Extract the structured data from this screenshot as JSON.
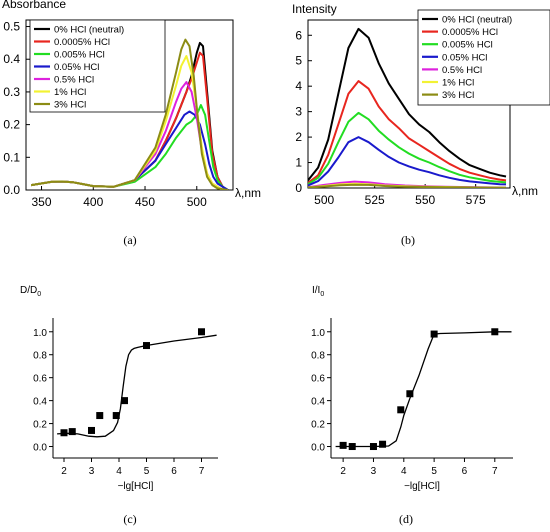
{
  "chart_data": [
    {
      "panel": "(a)",
      "type": "line",
      "title": "",
      "ylabel": "Absorbance",
      "xlabel": "λ,nm",
      "xlim": [
        335,
        535
      ],
      "ylim": [
        0,
        0.52
      ],
      "xticks": [
        350,
        400,
        450,
        500
      ],
      "yticks": [
        0.0,
        0.1,
        0.2,
        0.3,
        0.4,
        0.5
      ],
      "legend_position": "top-left",
      "series": [
        {
          "name": "0% HCl (neutral)",
          "color": "#000000",
          "x": [
            340,
            360,
            370,
            380,
            390,
            400,
            420,
            440,
            460,
            470,
            480,
            490,
            495,
            500,
            503,
            506,
            510,
            515,
            520,
            525,
            530
          ],
          "y": [
            0.015,
            0.025,
            0.026,
            0.024,
            0.018,
            0.012,
            0.01,
            0.03,
            0.09,
            0.15,
            0.22,
            0.3,
            0.35,
            0.42,
            0.45,
            0.44,
            0.3,
            0.12,
            0.04,
            0.01,
            0.0
          ]
        },
        {
          "name": "0.0005% HCl",
          "color": "#e8261f",
          "x": [
            340,
            360,
            370,
            380,
            390,
            400,
            420,
            440,
            460,
            470,
            480,
            490,
            495,
            500,
            503,
            506,
            510,
            515,
            520,
            525,
            530
          ],
          "y": [
            0.015,
            0.025,
            0.026,
            0.024,
            0.018,
            0.012,
            0.01,
            0.03,
            0.09,
            0.15,
            0.22,
            0.3,
            0.34,
            0.39,
            0.42,
            0.41,
            0.28,
            0.11,
            0.04,
            0.01,
            0.0
          ]
        },
        {
          "name": "0.005% HCl",
          "color": "#22dd22",
          "x": [
            340,
            360,
            370,
            380,
            390,
            400,
            420,
            440,
            460,
            470,
            480,
            490,
            495,
            500,
            504,
            508,
            512,
            516,
            520,
            525,
            530
          ],
          "y": [
            0.015,
            0.025,
            0.026,
            0.024,
            0.018,
            0.012,
            0.01,
            0.025,
            0.07,
            0.11,
            0.16,
            0.2,
            0.21,
            0.23,
            0.26,
            0.23,
            0.15,
            0.07,
            0.03,
            0.01,
            0.0
          ]
        },
        {
          "name": "0.05% HCl",
          "color": "#1a1acc",
          "x": [
            340,
            360,
            370,
            380,
            390,
            400,
            420,
            440,
            460,
            470,
            480,
            488,
            493,
            498,
            503,
            508,
            512,
            516,
            520,
            525,
            530
          ],
          "y": [
            0.015,
            0.025,
            0.026,
            0.024,
            0.018,
            0.012,
            0.01,
            0.03,
            0.09,
            0.14,
            0.19,
            0.23,
            0.24,
            0.23,
            0.2,
            0.14,
            0.08,
            0.04,
            0.02,
            0.01,
            0.0
          ]
        },
        {
          "name": "0.5% HCl",
          "color": "#dd22dd",
          "x": [
            340,
            360,
            370,
            380,
            390,
            400,
            420,
            440,
            460,
            470,
            480,
            485,
            490,
            495,
            500,
            505,
            510,
            515,
            520,
            525,
            530
          ],
          "y": [
            0.015,
            0.025,
            0.026,
            0.024,
            0.018,
            0.012,
            0.01,
            0.03,
            0.11,
            0.18,
            0.27,
            0.31,
            0.33,
            0.3,
            0.22,
            0.12,
            0.05,
            0.02,
            0.01,
            0.0,
            0.0
          ]
        },
        {
          "name": "1% HCl",
          "color": "#f2f233",
          "x": [
            340,
            360,
            370,
            380,
            390,
            400,
            420,
            440,
            460,
            470,
            480,
            485,
            490,
            495,
            500,
            505,
            510,
            515,
            520,
            525,
            530
          ],
          "y": [
            0.015,
            0.025,
            0.026,
            0.024,
            0.018,
            0.012,
            0.01,
            0.03,
            0.12,
            0.21,
            0.32,
            0.38,
            0.41,
            0.36,
            0.25,
            0.13,
            0.05,
            0.02,
            0.01,
            0.0,
            0.0
          ]
        },
        {
          "name": "3% HCl",
          "color": "#8c8c14",
          "x": [
            340,
            360,
            370,
            380,
            390,
            400,
            420,
            440,
            460,
            470,
            480,
            485,
            489,
            493,
            497,
            501,
            505,
            510,
            515,
            520,
            530
          ],
          "y": [
            0.015,
            0.025,
            0.026,
            0.024,
            0.018,
            0.012,
            0.01,
            0.03,
            0.13,
            0.23,
            0.36,
            0.43,
            0.46,
            0.44,
            0.35,
            0.22,
            0.11,
            0.04,
            0.015,
            0.005,
            0.0
          ]
        }
      ]
    },
    {
      "panel": "(b)",
      "type": "line",
      "title": "",
      "ylabel": "Intensity",
      "xlabel": "λ,nm",
      "xlim": [
        492,
        592
      ],
      "ylim": [
        0,
        6.6
      ],
      "xticks": [
        500,
        525,
        550,
        575
      ],
      "yticks": [
        0,
        1,
        2,
        3,
        4,
        5,
        6
      ],
      "legend_position": "top-right",
      "series": [
        {
          "name": "0% HCl (neutral)",
          "color": "#000000",
          "x": [
            492,
            497,
            502,
            507,
            512,
            517,
            522,
            527,
            532,
            537,
            542,
            547,
            552,
            557,
            562,
            567,
            572,
            577,
            582,
            587,
            590
          ],
          "y": [
            0.3,
            0.8,
            1.9,
            3.7,
            5.5,
            6.25,
            5.9,
            4.9,
            4.1,
            3.5,
            2.9,
            2.5,
            2.2,
            1.8,
            1.45,
            1.15,
            0.9,
            0.75,
            0.6,
            0.5,
            0.45
          ]
        },
        {
          "name": "0.0005% HCl",
          "color": "#e8261f",
          "x": [
            492,
            497,
            502,
            507,
            512,
            517,
            522,
            527,
            532,
            537,
            542,
            547,
            552,
            557,
            562,
            567,
            572,
            577,
            582,
            587,
            590
          ],
          "y": [
            0.2,
            0.5,
            1.3,
            2.5,
            3.7,
            4.2,
            3.9,
            3.2,
            2.7,
            2.35,
            1.95,
            1.7,
            1.45,
            1.2,
            0.95,
            0.75,
            0.6,
            0.5,
            0.4,
            0.33,
            0.3
          ]
        },
        {
          "name": "0.005% HCl",
          "color": "#22dd22",
          "x": [
            492,
            497,
            502,
            507,
            512,
            517,
            522,
            527,
            532,
            537,
            542,
            547,
            552,
            557,
            562,
            567,
            572,
            577,
            582,
            587,
            590
          ],
          "y": [
            0.15,
            0.4,
            0.95,
            1.8,
            2.6,
            2.95,
            2.7,
            2.25,
            1.9,
            1.6,
            1.35,
            1.15,
            1.0,
            0.82,
            0.66,
            0.52,
            0.42,
            0.35,
            0.28,
            0.24,
            0.22
          ]
        },
        {
          "name": "0.05% HCl",
          "color": "#1a1acc",
          "x": [
            492,
            497,
            502,
            507,
            512,
            517,
            522,
            527,
            532,
            537,
            542,
            547,
            552,
            557,
            562,
            567,
            572,
            577,
            582,
            587,
            590
          ],
          "y": [
            0.1,
            0.27,
            0.65,
            1.2,
            1.8,
            2.0,
            1.8,
            1.5,
            1.22,
            1.0,
            0.85,
            0.72,
            0.62,
            0.5,
            0.4,
            0.32,
            0.26,
            0.22,
            0.18,
            0.15,
            0.14
          ]
        },
        {
          "name": "0.5% HCl",
          "color": "#dd22dd",
          "x": [
            492,
            500,
            508,
            515,
            522,
            530,
            540,
            550,
            560,
            575,
            590
          ],
          "y": [
            0.03,
            0.12,
            0.2,
            0.25,
            0.22,
            0.15,
            0.1,
            0.07,
            0.05,
            0.03,
            0.02
          ]
        },
        {
          "name": "1% HCl",
          "color": "#f2f233",
          "x": [
            492,
            500,
            508,
            515,
            522,
            530,
            540,
            550,
            560,
            575,
            590
          ],
          "y": [
            0.02,
            0.08,
            0.14,
            0.17,
            0.15,
            0.1,
            0.07,
            0.05,
            0.04,
            0.02,
            0.01
          ]
        },
        {
          "name": "3% HCl",
          "color": "#8c8c14",
          "x": [
            492,
            500,
            508,
            515,
            522,
            530,
            540,
            550,
            560,
            575,
            590
          ],
          "y": [
            0.02,
            0.06,
            0.11,
            0.13,
            0.12,
            0.08,
            0.05,
            0.04,
            0.03,
            0.02,
            0.01
          ]
        }
      ]
    },
    {
      "panel": "(c)",
      "type": "scatter",
      "title": "",
      "ylabel": "D/D",
      "ylabel_sub": "0",
      "xlabel": "−lg[HCl]",
      "xlim": [
        1.6,
        7.6
      ],
      "ylim": [
        -0.1,
        1.12
      ],
      "xticks": [
        2,
        3,
        4,
        5,
        6,
        7
      ],
      "yticks": [
        0.0,
        0.2,
        0.4,
        0.6,
        0.8,
        1.0
      ],
      "points": {
        "x": [
          2.0,
          2.3,
          3.0,
          3.3,
          3.9,
          4.2,
          5.0,
          7.0
        ],
        "y": [
          0.12,
          0.13,
          0.14,
          0.27,
          0.27,
          0.4,
          0.88,
          1.0
        ]
      },
      "fit": {
        "x": [
          1.75,
          2.1,
          2.5,
          2.9,
          3.2,
          3.5,
          3.8,
          3.95,
          4.05,
          4.15,
          4.25,
          4.35,
          4.45,
          4.55,
          4.7,
          5.0,
          6.0,
          7.0,
          7.55
        ],
        "y": [
          0.11,
          0.115,
          0.11,
          0.09,
          0.085,
          0.09,
          0.14,
          0.21,
          0.33,
          0.52,
          0.7,
          0.8,
          0.84,
          0.855,
          0.865,
          0.88,
          0.92,
          0.95,
          0.97
        ]
      }
    },
    {
      "panel": "(d)",
      "type": "scatter",
      "title": "",
      "ylabel": "I/I",
      "ylabel_sub": "0",
      "xlabel": "−lg[HCl]",
      "xlim": [
        1.6,
        7.6
      ],
      "ylim": [
        -0.1,
        1.12
      ],
      "xticks": [
        2,
        3,
        4,
        5,
        6,
        7
      ],
      "yticks": [
        0.0,
        0.2,
        0.4,
        0.6,
        0.8,
        1.0
      ],
      "points": {
        "x": [
          2.0,
          2.3,
          3.0,
          3.3,
          3.9,
          4.2,
          5.0,
          7.0
        ],
        "y": [
          0.01,
          0.0,
          0.0,
          0.02,
          0.32,
          0.46,
          0.98,
          1.0
        ]
      },
      "fit": {
        "x": [
          1.75,
          2.5,
          3.0,
          3.5,
          3.75,
          3.9,
          4.0,
          4.2,
          4.5,
          4.8,
          5.0,
          5.2,
          6.0,
          7.0,
          7.55
        ],
        "y": [
          0.0,
          0.0,
          0.0,
          0.005,
          0.05,
          0.17,
          0.27,
          0.42,
          0.62,
          0.85,
          0.98,
          0.985,
          0.99,
          1.0,
          1.0
        ]
      }
    }
  ],
  "captions": [
    "(a)",
    "(b)",
    "(c)",
    "(d)"
  ]
}
